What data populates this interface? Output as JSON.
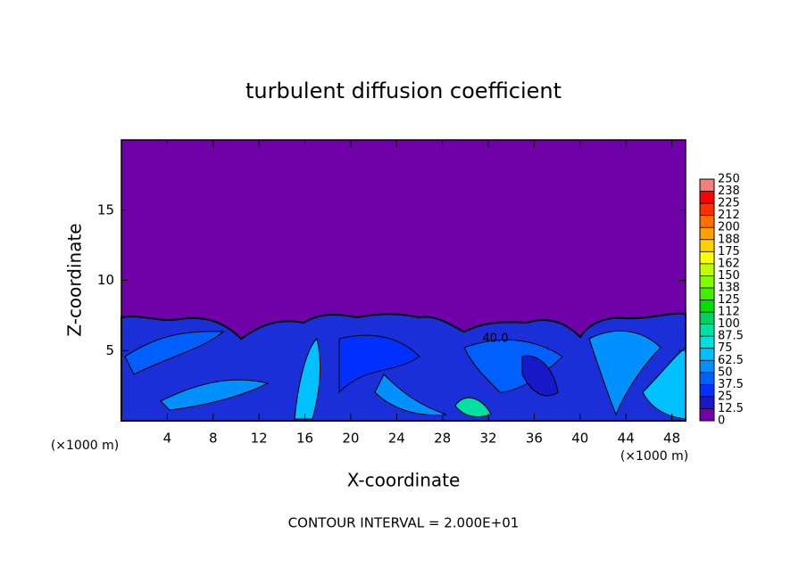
{
  "chart_data": {
    "type": "contour",
    "title": "turbulent diffusion coefficient",
    "xlabel": "X-coordinate",
    "ylabel": "Z-coordinate",
    "x_unit": "(×1000 m)",
    "y_unit": "(×1000 m)",
    "xlim": [
      0,
      49.2
    ],
    "ylim": [
      0,
      20
    ],
    "xticks": [
      4,
      8,
      12,
      16,
      20,
      24,
      28,
      32,
      36,
      40,
      44,
      48
    ],
    "yticks": [
      5,
      10,
      15
    ],
    "levels": [
      0,
      12.5,
      25,
      37.5,
      50,
      62.5,
      75,
      87.5,
      100,
      {
        "value": 112.5,
        "label": "112"
      },
      125,
      {
        "value": 137.5,
        "label": "138"
      },
      150,
      {
        "value": 162.5,
        "label": "162"
      },
      175,
      {
        "value": 187.5,
        "label": "188"
      },
      200,
      {
        "value": 212.5,
        "label": "212"
      },
      225,
      {
        "value": 237.5,
        "label": "238"
      },
      250
    ],
    "colors": [
      "#7000a8",
      "#1818c8",
      "#0030ff",
      "#0060ff",
      "#0090ff",
      "#00c0ff",
      "#00e0e0",
      "#00e0a0",
      "#00d060",
      "#00e000",
      "#40f000",
      "#80ff00",
      "#c0ff00",
      "#ffff00",
      "#ffd000",
      "#ffa000",
      "#ff7000",
      "#ff3000",
      "#ff0000",
      "#f08080"
    ],
    "contour_label": "40.0",
    "note": "CONTOUR INTERVAL = 2.000E+01"
  }
}
